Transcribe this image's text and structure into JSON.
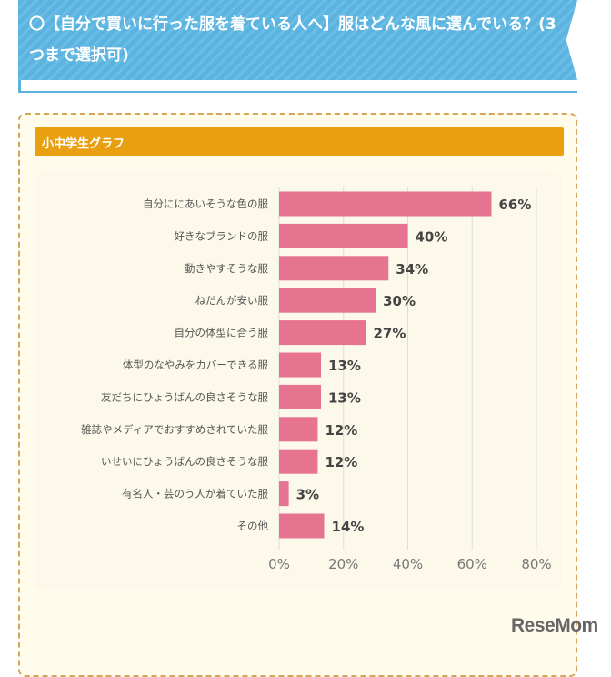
{
  "header": {
    "title": "〇【自分で買いに行った服を着ている人へ】服はどんな風に選んでいる？(3つまで選択可)"
  },
  "section": {
    "title": "小中学生グラフ"
  },
  "logo": "ReseMom",
  "chart_data": {
    "type": "bar",
    "orientation": "horizontal",
    "categories": [
      "自分ににあいそうな色の服",
      "好きなブランドの服",
      "動きやすそうな服",
      "ねだんが安い服",
      "自分の体型に合う服",
      "体型のなやみをカバーできる服",
      "友だちにひょうばんの良さそうな服",
      "雑誌やメディアでおすすめされていた服",
      "いせいにひょうばんの良さそうな服",
      "有名人・芸のう人が着ていた服",
      "その他"
    ],
    "values": [
      66,
      40,
      34,
      30,
      27,
      13,
      13,
      12,
      12,
      3,
      14
    ],
    "value_labels": [
      "66%",
      "40%",
      "34%",
      "30%",
      "27%",
      "13%",
      "13%",
      "12%",
      "12%",
      "3%",
      "14%"
    ],
    "xlim": [
      0,
      80
    ],
    "xticks": [
      "0%",
      "20%",
      "40%",
      "60%",
      "80%"
    ],
    "grid": true,
    "colors": {
      "bar": "#e6738f",
      "grid": "#dddddd"
    }
  }
}
